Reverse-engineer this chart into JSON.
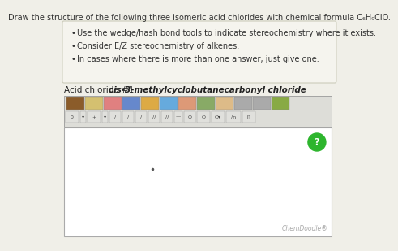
{
  "title_text": "Draw the structure of the following three isomeric acid chlorides with chemical formula C₆H₉ClO.",
  "bullets": [
    "Use the wedge/hash bond tools to indicate stereochemistry where it exists.",
    "Consider E/Z stereochemistry of alkenes.",
    "In cases where there is more than one answer, just give one."
  ],
  "acid_label_prefix": "Acid chloride #1: ",
  "acid_label_bold": "cis-3-methylcyclobutanecarbonyl chloride",
  "page_bg": "#f0efe8",
  "box_bg": "#f5f4ee",
  "box_border": "#ccccbb",
  "canvas_bg": "#ffffff",
  "canvas_border": "#aaaaaa",
  "toolbar_bg": "#ddddd8",
  "title_color": "#333333",
  "bullet_color": "#333333",
  "watermark": "ChemDoodle®",
  "green_btn_color": "#2db52d",
  "dot_color": "#555555"
}
